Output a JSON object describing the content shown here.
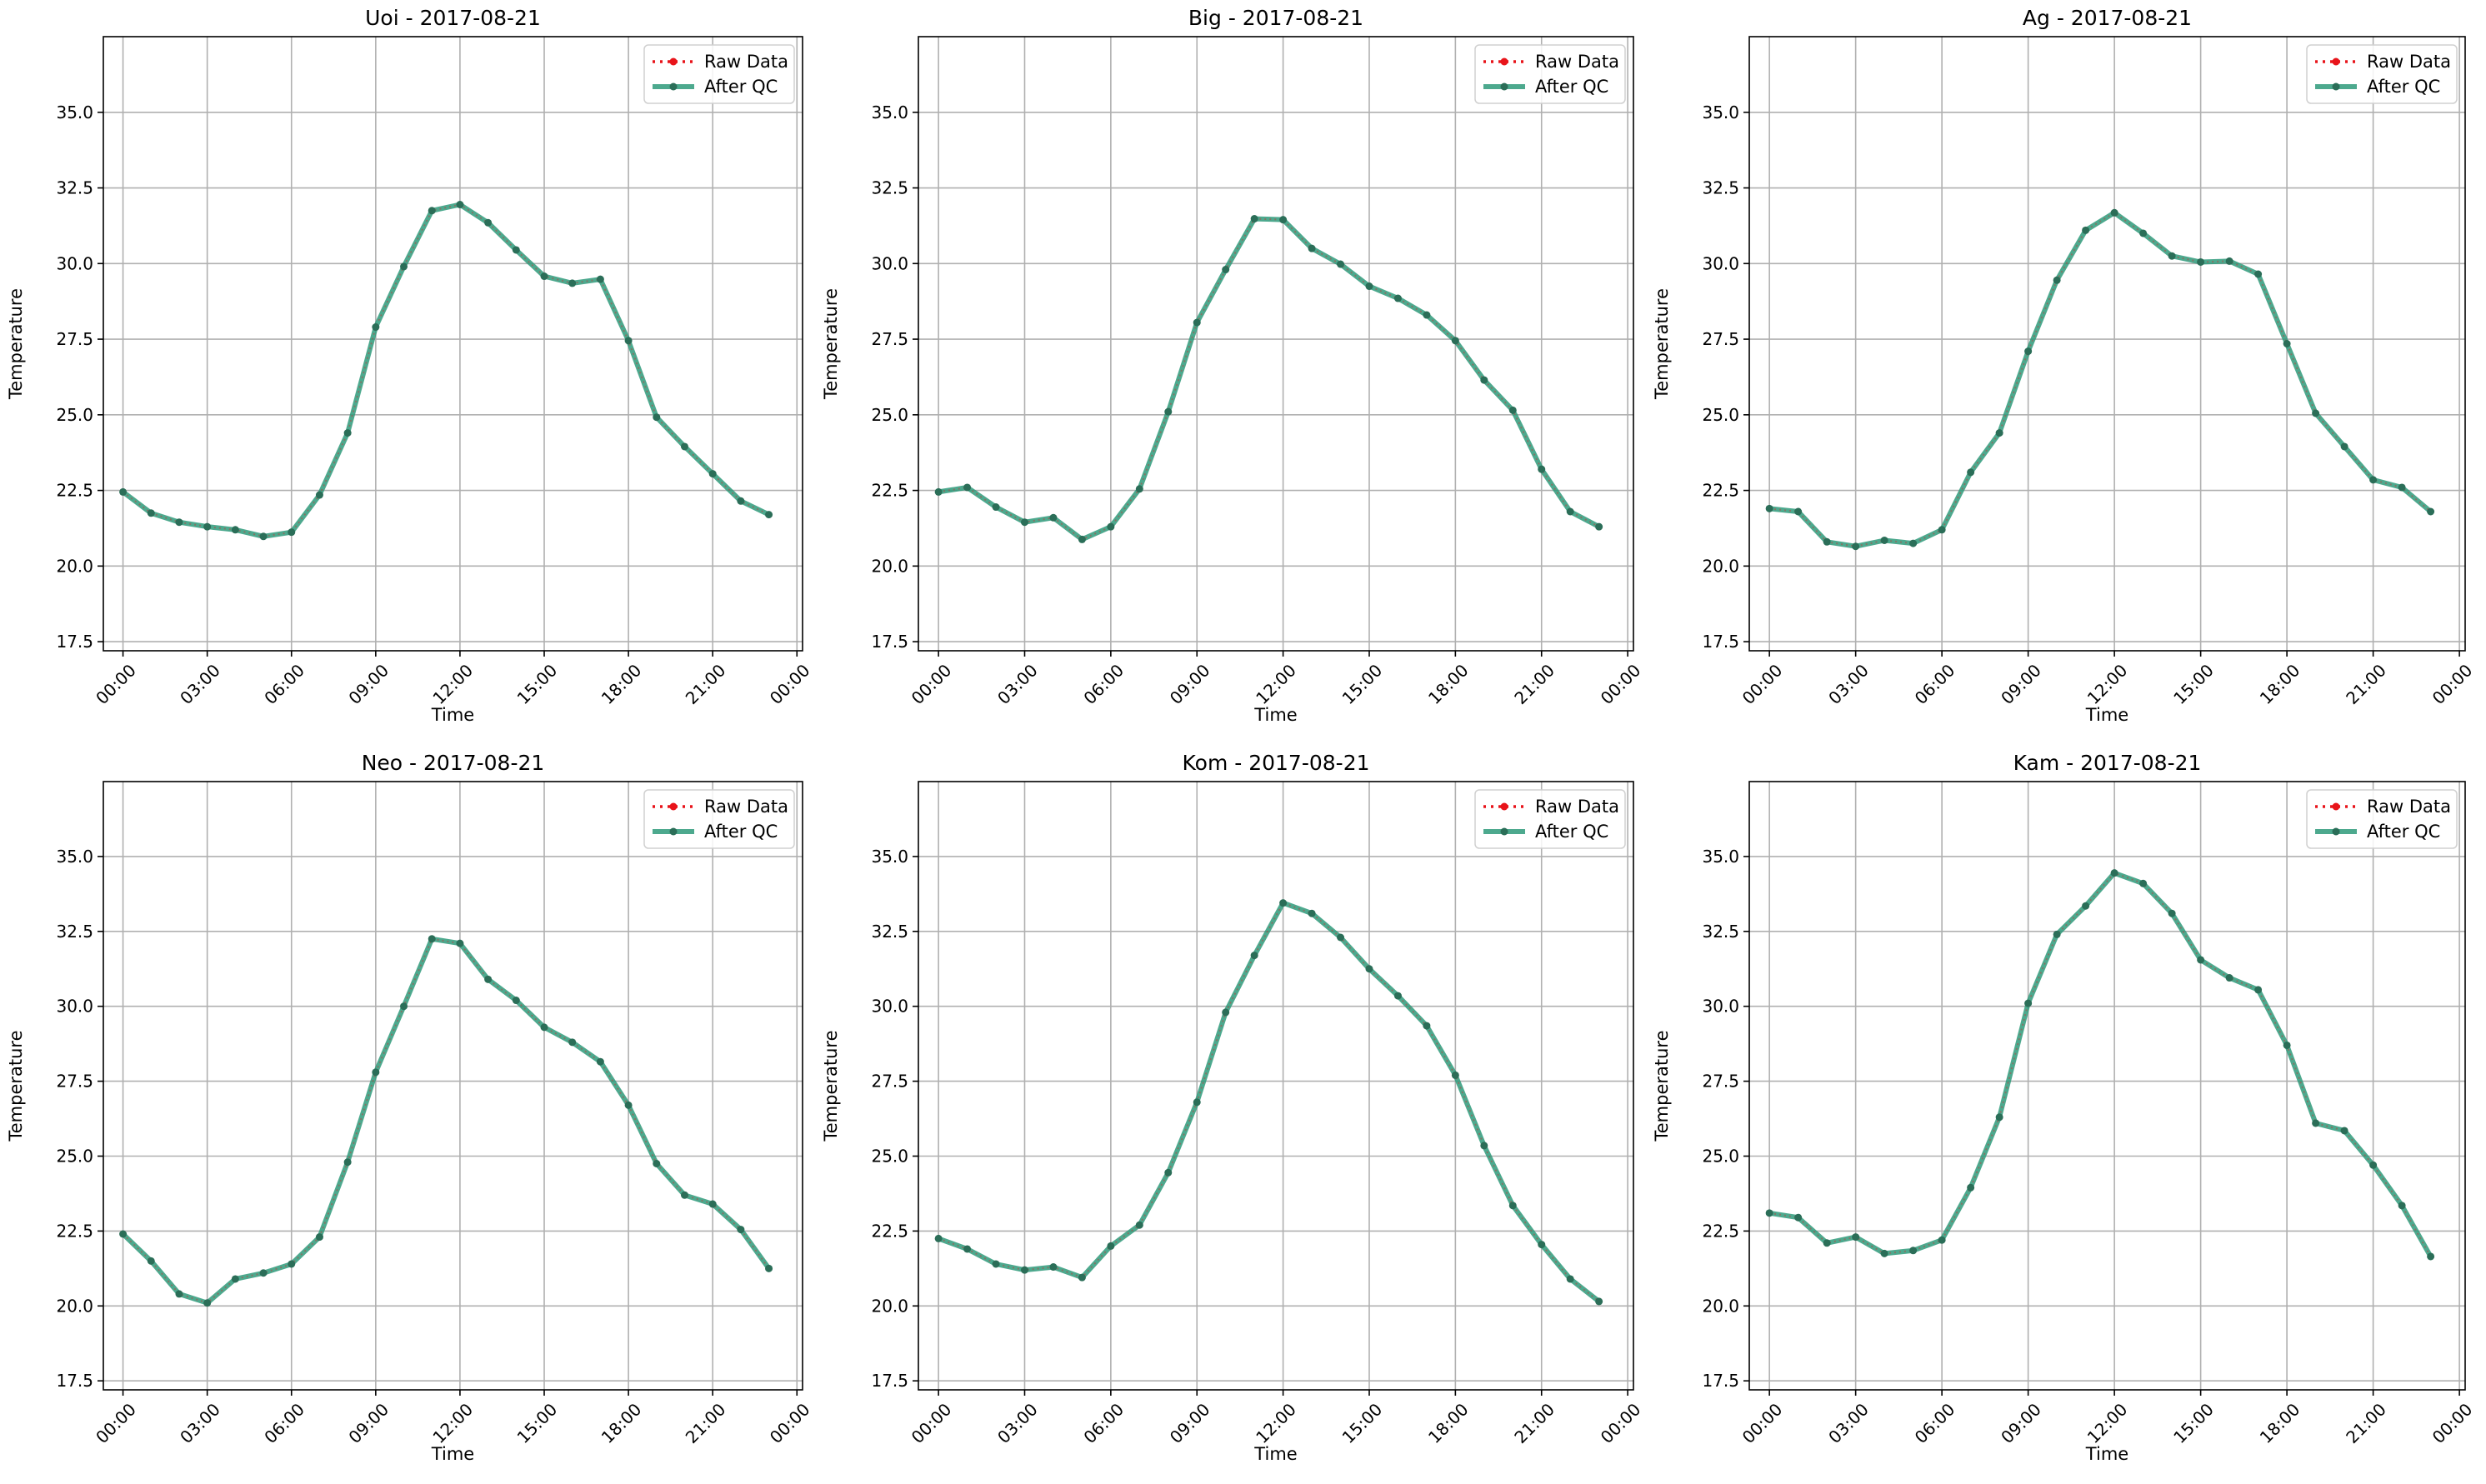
{
  "figure": {
    "colors": {
      "raw": "#e8141a",
      "qc": "#2e9a7a",
      "qc_marker": "#2b6e58",
      "grid": "#b0b0b0",
      "axes": "#000000",
      "legend_border": "#d0d0d0"
    }
  },
  "chart_data": [
    {
      "type": "line",
      "title": "Uoi - 2017-08-21",
      "xlabel": "Time",
      "ylabel": "Temperature",
      "xticks": [
        "00:00",
        "03:00",
        "06:00",
        "09:00",
        "12:00",
        "15:00",
        "18:00",
        "21:00",
        "00:00"
      ],
      "yticks": [
        "17.5",
        "20.0",
        "22.5",
        "25.0",
        "27.5",
        "30.0",
        "32.5",
        "35.0"
      ],
      "ylim": [
        17.2,
        37.5
      ],
      "xlim_hours": [
        -0.7,
        24.2
      ],
      "grid": true,
      "legend": "top-right",
      "x_hours": [
        0,
        1,
        2,
        3,
        4,
        5,
        6,
        7,
        8,
        9,
        10,
        11,
        12,
        13,
        14,
        15,
        16,
        17,
        18,
        19,
        20,
        21,
        22,
        23
      ],
      "series": [
        {
          "name": "Raw Data",
          "values": [
            22.45,
            21.75,
            21.45,
            21.3,
            21.2,
            20.98,
            21.12,
            22.35,
            24.4,
            27.9,
            29.9,
            31.75,
            31.95,
            31.35,
            30.45,
            29.58,
            29.35,
            29.48,
            27.45,
            24.92,
            23.95,
            23.05,
            22.15,
            21.7
          ]
        },
        {
          "name": "After QC",
          "values": [
            22.45,
            21.75,
            21.45,
            21.3,
            21.2,
            20.98,
            21.12,
            22.35,
            24.4,
            27.9,
            29.9,
            31.75,
            31.95,
            31.35,
            30.45,
            29.58,
            29.35,
            29.48,
            27.45,
            24.92,
            23.95,
            23.05,
            22.15,
            21.7
          ]
        }
      ]
    },
    {
      "type": "line",
      "title": "Big - 2017-08-21",
      "xlabel": "Time",
      "ylabel": "Temperature",
      "xticks": [
        "00:00",
        "03:00",
        "06:00",
        "09:00",
        "12:00",
        "15:00",
        "18:00",
        "21:00",
        "00:00"
      ],
      "yticks": [
        "17.5",
        "20.0",
        "22.5",
        "25.0",
        "27.5",
        "30.0",
        "32.5",
        "35.0"
      ],
      "ylim": [
        17.2,
        37.5
      ],
      "xlim_hours": [
        -0.7,
        24.2
      ],
      "grid": true,
      "legend": "top-right",
      "x_hours": [
        0,
        1,
        2,
        3,
        4,
        5,
        6,
        7,
        8,
        9,
        10,
        11,
        12,
        13,
        14,
        15,
        16,
        17,
        18,
        19,
        20,
        21,
        22,
        23
      ],
      "series": [
        {
          "name": "Raw Data",
          "values": [
            22.45,
            22.6,
            21.95,
            21.45,
            21.6,
            20.88,
            21.3,
            22.55,
            25.1,
            28.05,
            29.8,
            31.48,
            31.45,
            30.5,
            29.98,
            29.25,
            28.85,
            28.3,
            27.45,
            26.15,
            25.15,
            23.2,
            21.8,
            21.3
          ]
        },
        {
          "name": "After QC",
          "values": [
            22.45,
            22.6,
            21.95,
            21.45,
            21.6,
            20.88,
            21.3,
            22.55,
            25.1,
            28.05,
            29.8,
            31.48,
            31.45,
            30.5,
            29.98,
            29.25,
            28.85,
            28.3,
            27.45,
            26.15,
            25.15,
            23.2,
            21.8,
            21.3
          ]
        }
      ]
    },
    {
      "type": "line",
      "title": "Ag - 2017-08-21",
      "xlabel": "Time",
      "ylabel": "Temperature",
      "xticks": [
        "00:00",
        "03:00",
        "06:00",
        "09:00",
        "12:00",
        "15:00",
        "18:00",
        "21:00",
        "00:00"
      ],
      "yticks": [
        "17.5",
        "20.0",
        "22.5",
        "25.0",
        "27.5",
        "30.0",
        "32.5",
        "35.0"
      ],
      "ylim": [
        17.2,
        37.5
      ],
      "xlim_hours": [
        -0.7,
        24.2
      ],
      "grid": true,
      "legend": "top-right",
      "x_hours": [
        0,
        1,
        2,
        3,
        4,
        5,
        6,
        7,
        8,
        9,
        10,
        11,
        12,
        13,
        14,
        15,
        16,
        17,
        18,
        19,
        20,
        21,
        22,
        23
      ],
      "series": [
        {
          "name": "Raw Data",
          "values": [
            21.9,
            21.8,
            20.8,
            20.65,
            20.85,
            20.75,
            21.2,
            23.1,
            24.4,
            27.1,
            29.45,
            31.1,
            31.68,
            31.0,
            30.25,
            30.05,
            30.08,
            29.65,
            27.35,
            25.05,
            23.95,
            22.85,
            22.6,
            21.8
          ]
        },
        {
          "name": "After QC",
          "values": [
            21.9,
            21.8,
            20.8,
            20.65,
            20.85,
            20.75,
            21.2,
            23.1,
            24.4,
            27.1,
            29.45,
            31.1,
            31.68,
            31.0,
            30.25,
            30.05,
            30.08,
            29.65,
            27.35,
            25.05,
            23.95,
            22.85,
            22.6,
            21.8
          ]
        }
      ]
    },
    {
      "type": "line",
      "title": "Neo - 2017-08-21",
      "xlabel": "Time",
      "ylabel": "Temperature",
      "xticks": [
        "00:00",
        "03:00",
        "06:00",
        "09:00",
        "12:00",
        "15:00",
        "18:00",
        "21:00",
        "00:00"
      ],
      "yticks": [
        "17.5",
        "20.0",
        "22.5",
        "25.0",
        "27.5",
        "30.0",
        "32.5",
        "35.0"
      ],
      "ylim": [
        17.2,
        37.5
      ],
      "xlim_hours": [
        -0.7,
        24.2
      ],
      "grid": true,
      "legend": "top-right",
      "x_hours": [
        0,
        1,
        2,
        3,
        4,
        5,
        6,
        7,
        8,
        9,
        10,
        11,
        12,
        13,
        14,
        15,
        16,
        17,
        18,
        19,
        20,
        21,
        22,
        23
      ],
      "series": [
        {
          "name": "Raw Data",
          "values": [
            22.4,
            21.5,
            20.4,
            20.1,
            20.9,
            21.1,
            21.4,
            22.3,
            24.8,
            27.8,
            30.0,
            32.25,
            32.1,
            30.9,
            30.2,
            29.3,
            28.8,
            28.15,
            26.7,
            24.75,
            23.7,
            23.4,
            22.55,
            21.25
          ]
        },
        {
          "name": "After QC",
          "values": [
            22.4,
            21.5,
            20.4,
            20.1,
            20.9,
            21.1,
            21.4,
            22.3,
            24.8,
            27.8,
            30.0,
            32.25,
            32.1,
            30.9,
            30.2,
            29.3,
            28.8,
            28.15,
            26.7,
            24.75,
            23.7,
            23.4,
            22.55,
            21.25
          ]
        }
      ]
    },
    {
      "type": "line",
      "title": "Kom - 2017-08-21",
      "xlabel": "Time",
      "ylabel": "Temperature",
      "xticks": [
        "00:00",
        "03:00",
        "06:00",
        "09:00",
        "12:00",
        "15:00",
        "18:00",
        "21:00",
        "00:00"
      ],
      "yticks": [
        "17.5",
        "20.0",
        "22.5",
        "25.0",
        "27.5",
        "30.0",
        "32.5",
        "35.0"
      ],
      "ylim": [
        17.2,
        37.5
      ],
      "xlim_hours": [
        -0.7,
        24.2
      ],
      "grid": true,
      "legend": "top-right",
      "x_hours": [
        0,
        1,
        2,
        3,
        4,
        5,
        6,
        7,
        8,
        9,
        10,
        11,
        12,
        13,
        14,
        15,
        16,
        17,
        18,
        19,
        20,
        21,
        22,
        23
      ],
      "series": [
        {
          "name": "Raw Data",
          "values": [
            22.25,
            21.9,
            21.4,
            21.2,
            21.3,
            20.95,
            22.0,
            22.7,
            24.45,
            26.8,
            29.8,
            31.7,
            33.45,
            33.1,
            32.3,
            31.25,
            30.35,
            29.35,
            27.7,
            25.35,
            23.35,
            22.05,
            20.9,
            20.15
          ]
        },
        {
          "name": "After QC",
          "values": [
            22.25,
            21.9,
            21.4,
            21.2,
            21.3,
            20.95,
            22.0,
            22.7,
            24.45,
            26.8,
            29.8,
            31.7,
            33.45,
            33.1,
            32.3,
            31.25,
            30.35,
            29.35,
            27.7,
            25.35,
            23.35,
            22.05,
            20.9,
            20.15
          ]
        }
      ]
    },
    {
      "type": "line",
      "title": "Kam - 2017-08-21",
      "xlabel": "Time",
      "ylabel": "Temperature",
      "xticks": [
        "00:00",
        "03:00",
        "06:00",
        "09:00",
        "12:00",
        "15:00",
        "18:00",
        "21:00",
        "00:00"
      ],
      "yticks": [
        "17.5",
        "20.0",
        "22.5",
        "25.0",
        "27.5",
        "30.0",
        "32.5",
        "35.0"
      ],
      "ylim": [
        17.2,
        37.5
      ],
      "xlim_hours": [
        -0.7,
        24.2
      ],
      "grid": true,
      "legend": "top-right",
      "x_hours": [
        0,
        1,
        2,
        3,
        4,
        5,
        6,
        7,
        8,
        9,
        10,
        11,
        12,
        13,
        14,
        15,
        16,
        17,
        18,
        19,
        20,
        21,
        22,
        23
      ],
      "series": [
        {
          "name": "Raw Data",
          "values": [
            23.1,
            22.95,
            22.1,
            22.3,
            21.75,
            21.85,
            22.2,
            23.95,
            26.3,
            30.1,
            32.4,
            33.35,
            34.45,
            34.1,
            33.1,
            31.55,
            30.95,
            30.55,
            28.7,
            26.1,
            25.85,
            24.7,
            23.35,
            21.65
          ]
        },
        {
          "name": "After QC",
          "values": [
            23.1,
            22.95,
            22.1,
            22.3,
            21.75,
            21.85,
            22.2,
            23.95,
            26.3,
            30.1,
            32.4,
            33.35,
            34.45,
            34.1,
            33.1,
            31.55,
            30.95,
            30.55,
            28.7,
            26.1,
            25.85,
            24.7,
            23.35,
            21.65
          ]
        }
      ]
    }
  ]
}
